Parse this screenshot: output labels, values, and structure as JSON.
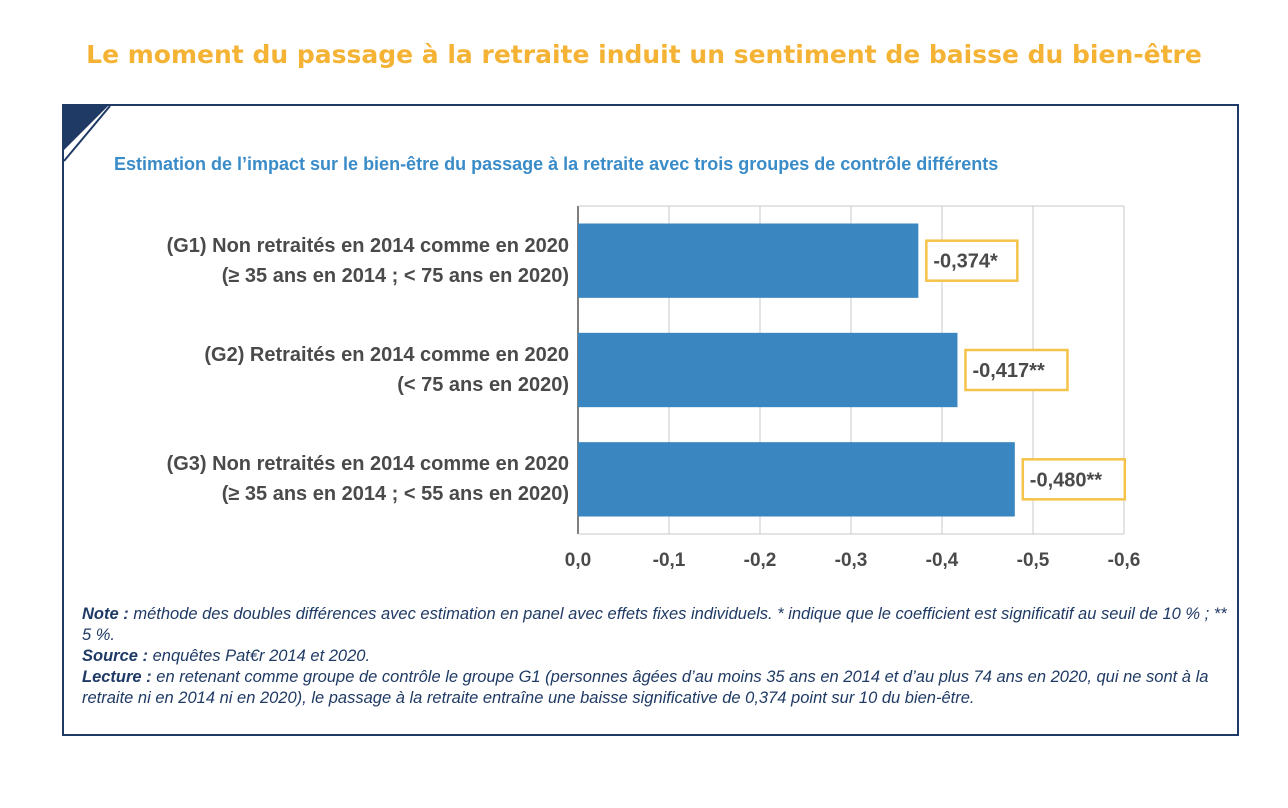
{
  "headline": "Le moment du passage à la retraite induit un sentiment de baisse du bien-être",
  "chart_data": {
    "type": "bar",
    "orientation": "horizontal",
    "title": "Estimation de l’impact sur le bien-être du passage à la retraite avec trois groupes de contrôle différents",
    "categories": [
      {
        "line1": "(G1) Non retraités en 2014 comme en 2020",
        "line2": "(≥ 35 ans en 2014 ; < 75 ans en 2020)"
      },
      {
        "line1": "(G2) Retraités en 2014 comme en 2020",
        "line2": "(< 75 ans en 2020)"
      },
      {
        "line1": "(G3) Non retraités en 2014 comme en 2020",
        "line2": "(≥ 35 ans en 2014 ; < 55 ans en 2020)"
      }
    ],
    "values": [
      -0.374,
      -0.417,
      -0.48
    ],
    "data_labels": [
      "-0,374*",
      "-0,417**",
      "-0,480**"
    ],
    "xlim": [
      0,
      -0.6
    ],
    "x_ticks": [
      0,
      -0.1,
      -0.2,
      -0.3,
      -0.4,
      -0.5,
      -0.6
    ],
    "x_tick_labels": [
      "0,0",
      "-0,1",
      "-0,2",
      "-0,3",
      "-0,4",
      "-0,5",
      "-0,6"
    ],
    "grid": true,
    "bar_color": "#3a86c0",
    "label_box_color": "#f5c24a"
  },
  "footer": {
    "note_label": "Note :",
    "note_text": " méthode des doubles différences avec estimation en panel avec effets fixes individuels. * indique que le coefficient est significatif au seuil de 10 % ; ** 5 %.",
    "source_label": "Source :",
    "source_text": " enquêtes Pat€r 2014 et 2020.",
    "lecture_label": "Lecture :",
    "lecture_text": " en retenant comme groupe de contrôle le groupe G1 (personnes âgées d’au moins 35 ans en 2014 et d’au plus 74 ans en 2020, qui ne sont à la retraite ni en 2014 ni en 2020), le passage à la retraite entraîne une baisse significative de 0,374 point sur 10 du bien-être."
  },
  "colors": {
    "headline": "#f5b335",
    "subtitle": "#3a8cc8",
    "frame": "#1f3a64"
  }
}
